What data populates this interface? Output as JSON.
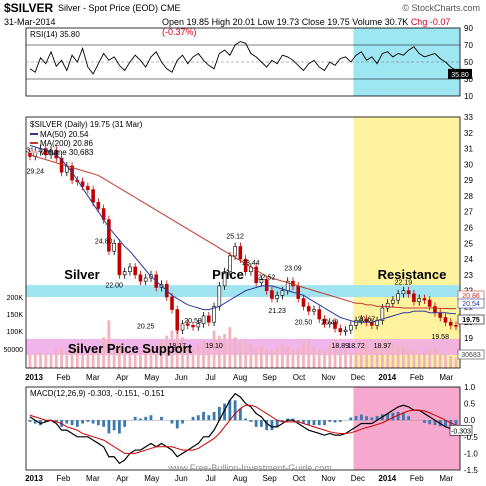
{
  "header": {
    "symbol": "$SILVER",
    "description": "Silver - Spot Price (EOD)  CME",
    "brand": "© StockCharts.com",
    "date": "31-Mar-2014",
    "open": "Open 19.85",
    "high": "High 20.01",
    "low": "Low 19.73",
    "close": "Close 19.75",
    "volume": "Volume 30.7K",
    "change": "Chg -0.07 (-0.37%)",
    "change_color": "#d0021b"
  },
  "chart_data": [
    {
      "panel": "rsi",
      "type": "line",
      "legend": "RSI(14) 35.80",
      "ylim": [
        10,
        90
      ],
      "y_ticks": [
        10,
        30,
        50,
        70,
        90
      ],
      "ref_lines": [
        30,
        70
      ],
      "last_value_label": "35.80",
      "series": [
        {
          "name": "RSI(14)",
          "values": [
            42,
            38,
            55,
            48,
            62,
            45,
            52,
            40,
            58,
            50,
            66,
            44,
            36,
            48,
            60,
            52,
            56,
            46,
            40,
            50,
            58,
            52,
            44,
            56,
            62,
            50,
            42,
            38,
            52,
            58,
            48,
            56,
            60,
            52,
            46,
            42,
            60,
            64,
            58,
            70,
            74,
            72,
            60,
            56,
            50,
            44,
            52,
            48,
            58,
            56,
            52,
            46,
            40,
            48,
            52,
            44,
            40,
            50,
            46,
            54,
            56,
            50,
            58,
            62,
            52,
            56,
            48,
            60,
            62,
            56,
            60,
            58,
            64,
            68,
            60,
            56,
            58,
            60,
            54,
            50,
            44,
            40,
            36,
            36
          ]
        }
      ]
    },
    {
      "panel": "price",
      "type": "candlestick",
      "legend": [
        "$SILVER (Daily) 19.75 (31 Mar)",
        "MA(50) 20.54",
        "MA(200) 20.86",
        "Volume 30,683"
      ],
      "x_labels": [
        "2013",
        "Feb",
        "Mar",
        "Apr",
        "May",
        "Jun",
        "Jul",
        "Aug",
        "Sep",
        "Oct",
        "Nov",
        "Dec",
        "2014",
        "Feb",
        "Mar"
      ],
      "ylim": [
        19,
        33
      ],
      "y_ticks": [
        19,
        20,
        21,
        22,
        23,
        24,
        25,
        26,
        27,
        28,
        29,
        30,
        31,
        32,
        33
      ],
      "volume_ticks": [
        "200K",
        "150K",
        "100K",
        "50000"
      ],
      "resistance_label": "Resistance",
      "support_label": "Silver Price Support",
      "zone_price_label": "Price",
      "zone_silver_label": "Silver",
      "last_price_label": "19.75",
      "ma50_label": "20.54",
      "ma200_label": "20.86",
      "volume_label": "30683",
      "annotations": [
        {
          "text": "31",
          "value": 31.0,
          "t": 0
        },
        {
          "text": "29.24",
          "value": 29.24,
          "t": 1
        },
        {
          "text": "24.80",
          "value": 24.8,
          "t": 14
        },
        {
          "text": "22.00",
          "value": 22.0,
          "t": 16
        },
        {
          "text": "20.25",
          "value": 20.25,
          "t": 22
        },
        {
          "text": "18.17",
          "value": 18.17,
          "t": 28
        },
        {
          "text": "20.59",
          "value": 20.59,
          "t": 31
        },
        {
          "text": "19.10",
          "value": 19.1,
          "t": 35
        },
        {
          "text": "25.12",
          "value": 25.12,
          "t": 39
        },
        {
          "text": "23.44",
          "value": 23.44,
          "t": 42
        },
        {
          "text": "22.52",
          "value": 22.52,
          "t": 45
        },
        {
          "text": "21.23",
          "value": 21.23,
          "t": 47
        },
        {
          "text": "23.09",
          "value": 23.09,
          "t": 50
        },
        {
          "text": "20.50",
          "value": 20.5,
          "t": 52
        },
        {
          "text": "20.48",
          "value": 20.48,
          "t": 57
        },
        {
          "text": "18.89",
          "value": 18.89,
          "t": 59
        },
        {
          "text": "18.72",
          "value": 18.72,
          "t": 62
        },
        {
          "text": "20.67",
          "value": 20.67,
          "t": 64
        },
        {
          "text": "18.97",
          "value": 18.97,
          "t": 67
        },
        {
          "text": "22.19",
          "value": 22.19,
          "t": 71
        },
        {
          "text": "19.58",
          "value": 19.58,
          "t": 78
        }
      ],
      "close": [
        30.5,
        30.8,
        31.0,
        30.6,
        30.9,
        30.4,
        29.5,
        29.9,
        29.0,
        28.9,
        28.6,
        28.4,
        27.6,
        27.2,
        26.5,
        24.5,
        25.0,
        23.0,
        23.2,
        23.5,
        23.0,
        22.6,
        22.8,
        23.0,
        22.2,
        22.4,
        21.6,
        20.8,
        19.5,
        19.9,
        19.8,
        19.7,
        19.9,
        20.4,
        20.0,
        21.0,
        22.3,
        23.2,
        24.2,
        24.8,
        24.0,
        23.2,
        23.5,
        22.5,
        22.7,
        22.0,
        21.5,
        21.7,
        22.0,
        22.6,
        22.3,
        21.5,
        21.0,
        20.7,
        20.8,
        20.2,
        19.9,
        20.0,
        19.6,
        19.4,
        19.5,
        19.8,
        20.1,
        20.2,
        20.0,
        19.8,
        20.1,
        20.9,
        21.2,
        21.4,
        21.8,
        22.0,
        21.8,
        21.3,
        21.5,
        21.4,
        21.0,
        20.6,
        20.3,
        20.0,
        19.8,
        19.75
      ],
      "ma50": [
        31.2,
        31.1,
        31.0,
        30.9,
        30.8,
        30.6,
        30.3,
        29.9,
        29.5,
        29.0,
        28.5,
        28.0,
        27.5,
        27.0,
        26.5,
        26.0,
        25.6,
        25.2,
        24.8,
        24.5,
        24.1,
        23.7,
        23.3,
        22.9,
        22.6,
        22.3,
        22.0,
        21.7,
        21.5,
        21.3,
        21.1,
        21.0,
        20.9,
        20.8,
        20.8,
        20.9,
        21.0,
        21.2,
        21.4,
        21.6,
        21.8,
        22.0,
        22.1,
        22.2,
        22.3,
        22.3,
        22.3,
        22.2,
        22.1,
        22.0,
        21.9,
        21.8,
        21.7,
        21.5,
        21.3,
        21.1,
        20.9,
        20.7,
        20.5,
        20.3,
        20.2,
        20.1,
        20.0,
        20.0,
        20.0,
        20.0,
        20.1,
        20.2,
        20.3,
        20.4,
        20.5,
        20.6,
        20.6,
        20.7,
        20.7,
        20.7,
        20.6,
        20.6,
        20.6,
        20.6,
        20.55,
        20.54
      ],
      "ma200": [
        30.6,
        30.5,
        30.4,
        30.3,
        30.2,
        30.1,
        30.0,
        29.9,
        29.8,
        29.7,
        29.6,
        29.5,
        29.4,
        29.3,
        29.1,
        28.9,
        28.7,
        28.5,
        28.3,
        28.1,
        27.9,
        27.7,
        27.5,
        27.3,
        27.1,
        26.9,
        26.7,
        26.5,
        26.3,
        26.1,
        25.9,
        25.7,
        25.5,
        25.3,
        25.1,
        24.9,
        24.7,
        24.5,
        24.3,
        24.1,
        23.9,
        23.7,
        23.5,
        23.3,
        23.1,
        22.9,
        22.8,
        22.7,
        22.6,
        22.5,
        22.4,
        22.3,
        22.2,
        22.1,
        22.0,
        21.9,
        21.8,
        21.7,
        21.6,
        21.5,
        21.4,
        21.3,
        21.2,
        21.2,
        21.1,
        21.1,
        21.0,
        21.0,
        21.0,
        20.95,
        20.95,
        20.9,
        20.9,
        20.9,
        20.9,
        20.9,
        20.9,
        20.9,
        20.88,
        20.87,
        20.86,
        20.86
      ],
      "volume": [
        40,
        45,
        50,
        42,
        38,
        55,
        60,
        48,
        52,
        70,
        45,
        50,
        62,
        55,
        90,
        140,
        60,
        75,
        50,
        48,
        45,
        52,
        60,
        58,
        70,
        80,
        95,
        110,
        150,
        90,
        60,
        55,
        70,
        80,
        75,
        110,
        95,
        100,
        120,
        90,
        80,
        75,
        70,
        60,
        65,
        55,
        50,
        60,
        70,
        65,
        55,
        60,
        75,
        80,
        60,
        55,
        50,
        70,
        85,
        60,
        55,
        45,
        50,
        60,
        70,
        55,
        60,
        75,
        80,
        70,
        65,
        60,
        55,
        50,
        45,
        50,
        55,
        60,
        45,
        40,
        35,
        31
      ]
    },
    {
      "panel": "macd",
      "type": "line",
      "legend": "MACD(12,26,9) -0.303, -0.151, -0.151",
      "ylim": [
        -1.5,
        1.0
      ],
      "y_ticks": [
        1.0,
        0.5,
        0.0,
        -0.5,
        -1.0,
        -1.5
      ],
      "last_value_label": "-0.303",
      "series": [
        {
          "name": "MACD",
          "values": [
            0.1,
            0.0,
            -0.1,
            -0.05,
            0.0,
            -0.1,
            -0.3,
            -0.3,
            -0.4,
            -0.5,
            -0.5,
            -0.5,
            -0.6,
            -0.7,
            -0.8,
            -1.1,
            -1.1,
            -1.3,
            -1.2,
            -1.0,
            -0.9,
            -0.9,
            -0.8,
            -0.7,
            -0.8,
            -0.7,
            -0.8,
            -0.9,
            -1.1,
            -1.0,
            -0.9,
            -0.8,
            -0.7,
            -0.5,
            -0.5,
            -0.3,
            0.0,
            0.3,
            0.6,
            0.8,
            0.7,
            0.5,
            0.4,
            0.2,
            0.1,
            -0.1,
            -0.2,
            -0.2,
            -0.1,
            0.0,
            0.0,
            -0.1,
            -0.2,
            -0.3,
            -0.35,
            -0.4,
            -0.45,
            -0.4,
            -0.45,
            -0.45,
            -0.4,
            -0.3,
            -0.2,
            -0.1,
            -0.1,
            -0.1,
            0.0,
            0.1,
            0.2,
            0.3,
            0.4,
            0.45,
            0.4,
            0.3,
            0.3,
            0.2,
            0.1,
            0.0,
            -0.1,
            -0.2,
            -0.25,
            -0.303
          ]
        },
        {
          "name": "Signal",
          "values": [
            0.15,
            0.1,
            0.05,
            0.0,
            0.0,
            -0.05,
            -0.1,
            -0.2,
            -0.25,
            -0.3,
            -0.4,
            -0.45,
            -0.5,
            -0.55,
            -0.6,
            -0.7,
            -0.8,
            -0.9,
            -1.0,
            -1.0,
            -1.0,
            -0.95,
            -0.9,
            -0.85,
            -0.8,
            -0.8,
            -0.8,
            -0.8,
            -0.85,
            -0.9,
            -0.9,
            -0.9,
            -0.85,
            -0.75,
            -0.65,
            -0.55,
            -0.4,
            -0.2,
            0.0,
            0.2,
            0.35,
            0.45,
            0.45,
            0.4,
            0.3,
            0.2,
            0.1,
            0.0,
            -0.05,
            -0.05,
            -0.05,
            -0.05,
            -0.1,
            -0.15,
            -0.2,
            -0.25,
            -0.3,
            -0.35,
            -0.38,
            -0.4,
            -0.4,
            -0.38,
            -0.33,
            -0.27,
            -0.22,
            -0.18,
            -0.13,
            -0.08,
            0.0,
            0.08,
            0.15,
            0.22,
            0.28,
            0.3,
            0.3,
            0.28,
            0.22,
            0.15,
            0.08,
            0.0,
            -0.08,
            -0.151
          ]
        }
      ]
    }
  ],
  "footer": {
    "watermark": "www.Free-Bullion-Investment-Guide.com"
  },
  "colors": {
    "candle_up": "#000000",
    "candle_down": "#c00000",
    "ma50": "#2b3a9c",
    "ma200": "#c0392b",
    "volume": "#f2b3bf",
    "resistance_zone": "#9fe4f0",
    "support_zone": "#f0a8e8",
    "yellow_zone": "#fff3a0",
    "cyan_zone": "#9ee6f2",
    "pink_zone": "#f7a8cf",
    "macd": "#000000",
    "signal": "#cc0000",
    "histogram": "#3a78b0"
  }
}
